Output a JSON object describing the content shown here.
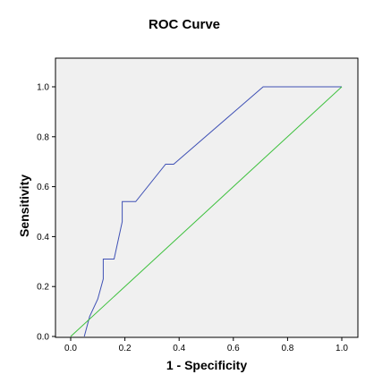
{
  "chart_data": {
    "type": "line",
    "title": "ROC Curve",
    "xlabel": "1 - Specificity",
    "ylabel": "Sensitivity",
    "xlim": [
      0.0,
      1.0
    ],
    "ylim": [
      0.0,
      1.0
    ],
    "xticks": [
      "0.0",
      "0.2",
      "0.4",
      "0.6",
      "0.8",
      "1.0"
    ],
    "yticks": [
      "0.0",
      "0.2",
      "0.4",
      "0.6",
      "0.8",
      "1.0"
    ],
    "grid": false,
    "background": "#f0f0f0",
    "series": [
      {
        "color": "#3f51b5",
        "x": [
          0.05,
          0.07,
          0.1,
          0.12,
          0.12,
          0.16,
          0.19,
          0.19,
          0.24,
          0.35,
          0.38,
          0.71,
          1.0
        ],
        "y": [
          0.0,
          0.08,
          0.15,
          0.23,
          0.31,
          0.31,
          0.46,
          0.54,
          0.54,
          0.69,
          0.69,
          1.0,
          1.0
        ]
      },
      {
        "color": "#3cc03c",
        "x": [
          0.0,
          1.0
        ],
        "y": [
          0.0,
          1.0
        ]
      }
    ]
  }
}
